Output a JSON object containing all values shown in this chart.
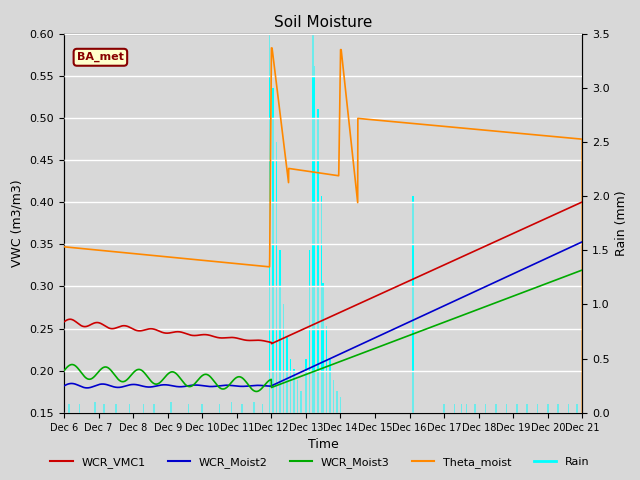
{
  "title": "Soil Moisture",
  "xlabel": "Time",
  "ylabel_left": "VWC (m3/m3)",
  "ylabel_right": "Rain (mm)",
  "ylim_left": [
    0.15,
    0.6
  ],
  "ylim_right": [
    0.0,
    3.5
  ],
  "yticks_left": [
    0.15,
    0.2,
    0.25,
    0.3,
    0.35,
    0.4,
    0.45,
    0.5,
    0.55,
    0.6
  ],
  "yticks_right": [
    0.0,
    0.5,
    1.0,
    1.5,
    2.0,
    2.5,
    3.0,
    3.5
  ],
  "xtick_labels": [
    "Dec 6",
    "Dec 7",
    "Dec 8",
    "Dec 9",
    "Dec 10",
    "Dec 11",
    "Dec 12",
    "Dec 13",
    "Dec 14",
    "Dec 15",
    "Dec 16",
    "Dec 17",
    "Dec 18",
    "Dec 19",
    "Dec 20",
    "Dec 21"
  ],
  "background_color": "#d8d8d8",
  "plot_bg_color": "#e8e8e8",
  "box_label": "BA_met",
  "box_color": "#880000",
  "box_fill": "#ffffcc"
}
